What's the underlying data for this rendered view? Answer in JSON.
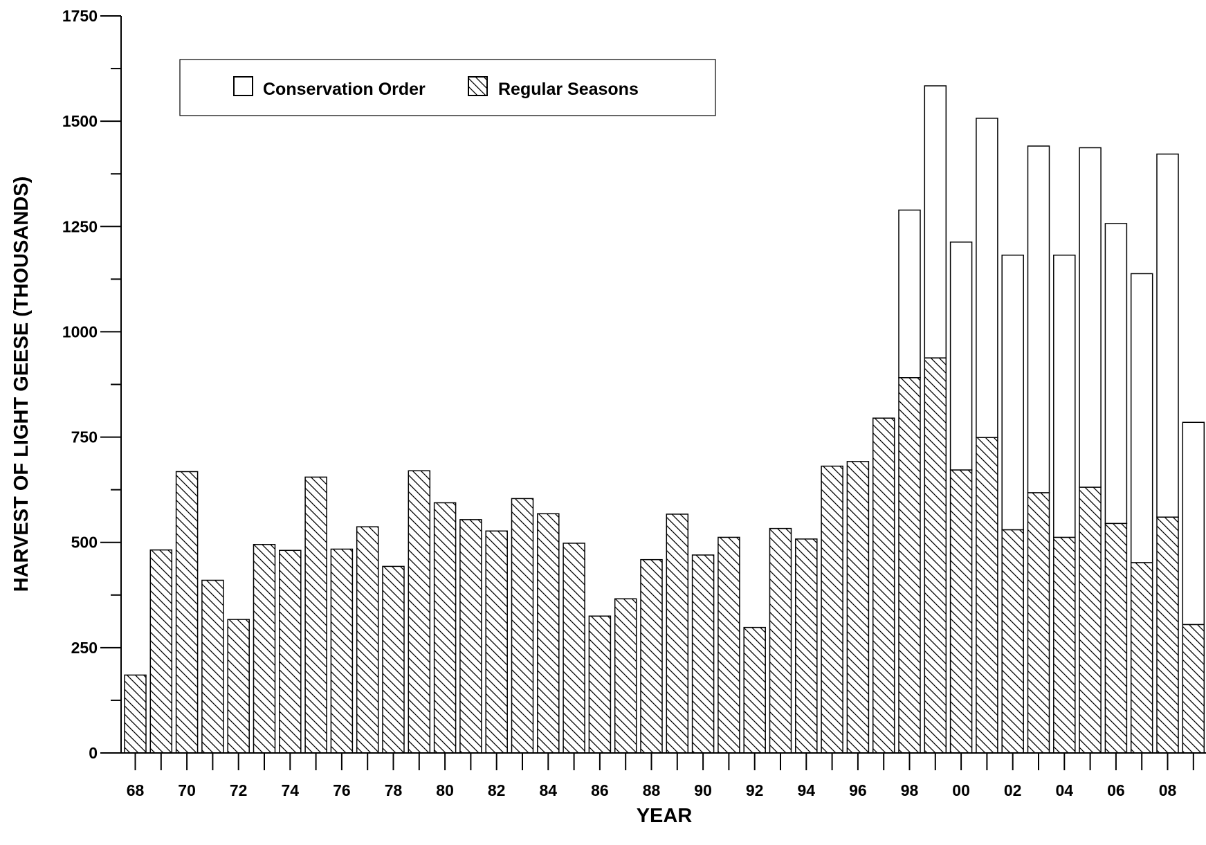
{
  "chart_data": {
    "type": "bar",
    "stacked": true,
    "xlabel": "YEAR",
    "ylabel": "HARVEST OF LIGHT GEESE (THOUSANDS)",
    "ylim": [
      0,
      1750
    ],
    "yticks": [
      0,
      250,
      500,
      750,
      1000,
      1250,
      1500,
      1750
    ],
    "categories": [
      "68",
      "69",
      "70",
      "71",
      "72",
      "73",
      "74",
      "75",
      "76",
      "77",
      "78",
      "79",
      "80",
      "81",
      "82",
      "83",
      "84",
      "85",
      "86",
      "87",
      "88",
      "89",
      "90",
      "91",
      "92",
      "93",
      "94",
      "95",
      "96",
      "97",
      "98",
      "99",
      "00",
      "01",
      "02",
      "03",
      "04",
      "05",
      "06",
      "07",
      "08",
      "09"
    ],
    "xtick_labels": [
      "68",
      "70",
      "72",
      "74",
      "76",
      "78",
      "80",
      "82",
      "84",
      "86",
      "88",
      "90",
      "92",
      "94",
      "96",
      "98",
      "00",
      "02",
      "04",
      "06",
      "08"
    ],
    "series": [
      {
        "name": "Regular Seasons",
        "pattern": "hatch",
        "values": [
          185,
          482,
          668,
          410,
          317,
          495,
          481,
          655,
          484,
          537,
          443,
          670,
          594,
          554,
          527,
          604,
          568,
          498,
          325,
          366,
          459,
          567,
          470,
          512,
          298,
          533,
          508,
          681,
          692,
          795,
          891,
          938,
          672,
          749,
          530,
          618,
          512,
          631,
          545,
          452,
          560,
          305
        ]
      },
      {
        "name": "Conservation Order",
        "pattern": "none",
        "values": [
          0,
          0,
          0,
          0,
          0,
          0,
          0,
          0,
          0,
          0,
          0,
          0,
          0,
          0,
          0,
          0,
          0,
          0,
          0,
          0,
          0,
          0,
          0,
          0,
          0,
          0,
          0,
          0,
          0,
          0,
          398,
          646,
          541,
          758,
          652,
          823,
          670,
          806,
          712,
          686,
          862,
          480
        ]
      }
    ],
    "totals": [
      185,
      482,
      668,
      410,
      317,
      495,
      481,
      655,
      484,
      537,
      443,
      670,
      594,
      554,
      527,
      604,
      568,
      498,
      325,
      366,
      459,
      567,
      470,
      512,
      298,
      533,
      508,
      681,
      692,
      795,
      1289,
      1584,
      1213,
      1507,
      1182,
      1441,
      1182,
      1437,
      1257,
      1138,
      1422,
      785
    ],
    "legend": {
      "position": "top-left",
      "entries": [
        "Conservation Order",
        "Regular Seasons"
      ]
    },
    "grid": false
  }
}
